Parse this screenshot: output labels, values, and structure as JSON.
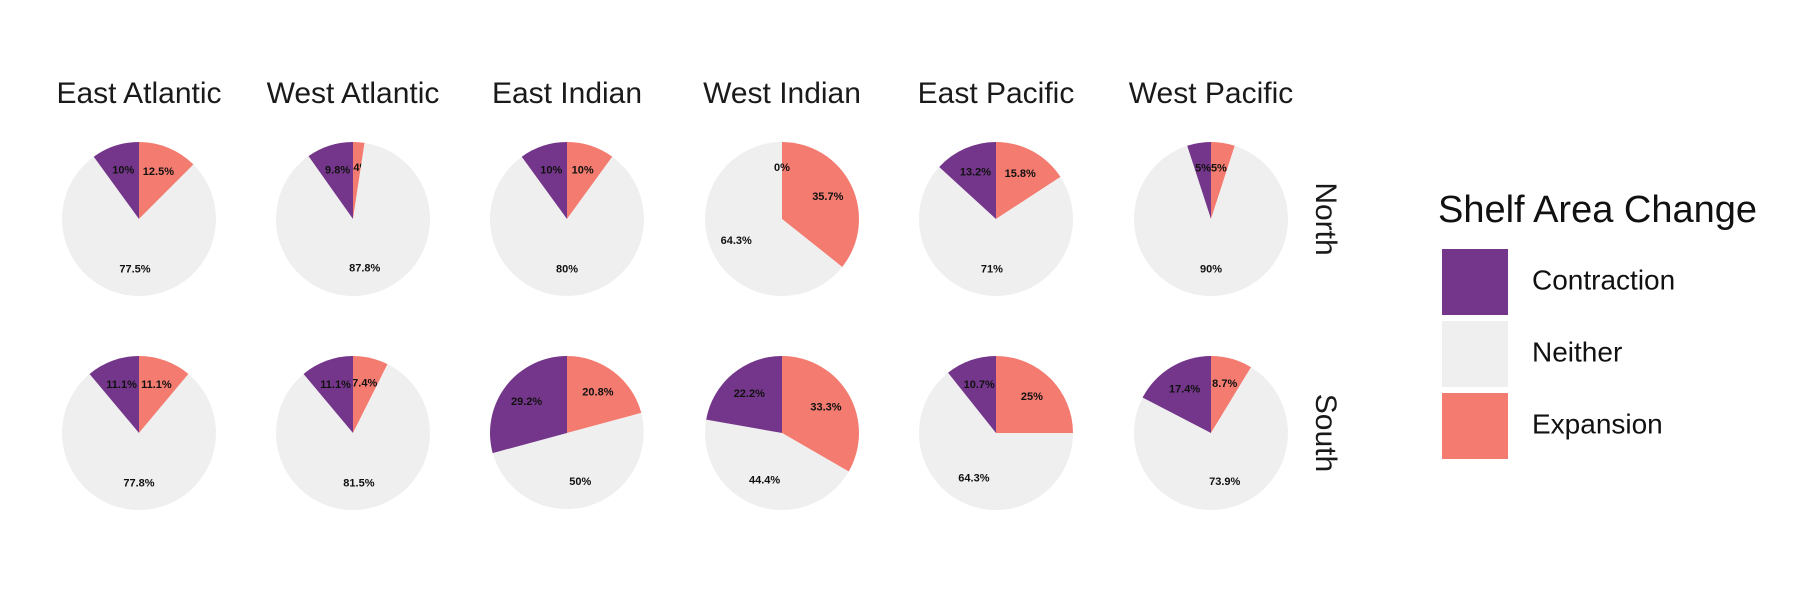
{
  "chart_data": {
    "type": "pie",
    "columns": [
      "East Atlantic",
      "West Atlantic",
      "East Indian",
      "West Indian",
      "East Pacific",
      "West Pacific"
    ],
    "rows": [
      "North",
      "South"
    ],
    "legend": {
      "title": "Shelf Area Change",
      "placement": "right",
      "entries": [
        {
          "name": "Contraction",
          "color": "#74368a"
        },
        {
          "name": "Neither",
          "color": "#efefef"
        },
        {
          "name": "Expansion",
          "color": "#f47b70"
        }
      ]
    },
    "panels": [
      {
        "row": "North",
        "column": "East Atlantic",
        "slices": [
          {
            "category": "Expansion",
            "value": 12.5,
            "label": "12.5%"
          },
          {
            "category": "Neither",
            "value": 77.5,
            "label": "77.5%"
          },
          {
            "category": "Contraction",
            "value": 10,
            "label": "10%"
          }
        ]
      },
      {
        "row": "North",
        "column": "West Atlantic",
        "slices": [
          {
            "category": "Expansion",
            "value": 2.4,
            "label": "2.4%"
          },
          {
            "category": "Neither",
            "value": 87.8,
            "label": "87.8%"
          },
          {
            "category": "Contraction",
            "value": 9.8,
            "label": "9.8%"
          }
        ]
      },
      {
        "row": "North",
        "column": "East Indian",
        "slices": [
          {
            "category": "Expansion",
            "value": 10,
            "label": "10%"
          },
          {
            "category": "Neither",
            "value": 80,
            "label": "80%"
          },
          {
            "category": "Contraction",
            "value": 10,
            "label": "10%"
          }
        ]
      },
      {
        "row": "North",
        "column": "West Indian",
        "slices": [
          {
            "category": "Expansion",
            "value": 35.7,
            "label": "35.7%"
          },
          {
            "category": "Neither",
            "value": 64.3,
            "label": "64.3%"
          },
          {
            "category": "Contraction",
            "value": 0,
            "label": "0%"
          }
        ]
      },
      {
        "row": "North",
        "column": "East Pacific",
        "slices": [
          {
            "category": "Expansion",
            "value": 15.8,
            "label": "15.8%"
          },
          {
            "category": "Neither",
            "value": 71,
            "label": "71%"
          },
          {
            "category": "Contraction",
            "value": 13.2,
            "label": "13.2%"
          }
        ]
      },
      {
        "row": "North",
        "column": "West Pacific",
        "slices": [
          {
            "category": "Expansion",
            "value": 5,
            "label": "5%"
          },
          {
            "category": "Neither",
            "value": 90,
            "label": "90%"
          },
          {
            "category": "Contraction",
            "value": 5,
            "label": "5%"
          }
        ]
      },
      {
        "row": "South",
        "column": "East Atlantic",
        "slices": [
          {
            "category": "Expansion",
            "value": 11.1,
            "label": "11.1%"
          },
          {
            "category": "Neither",
            "value": 77.8,
            "label": "77.8%"
          },
          {
            "category": "Contraction",
            "value": 11.1,
            "label": "11.1%"
          }
        ]
      },
      {
        "row": "South",
        "column": "West Atlantic",
        "slices": [
          {
            "category": "Expansion",
            "value": 7.4,
            "label": "7.4%"
          },
          {
            "category": "Neither",
            "value": 81.5,
            "label": "81.5%"
          },
          {
            "category": "Contraction",
            "value": 11.1,
            "label": "11.1%"
          }
        ]
      },
      {
        "row": "South",
        "column": "East Indian",
        "slices": [
          {
            "category": "Expansion",
            "value": 20.8,
            "label": "20.8%"
          },
          {
            "category": "Neither",
            "value": 50,
            "label": "50%"
          },
          {
            "category": "Contraction",
            "value": 29.2,
            "label": "29.2%"
          }
        ]
      },
      {
        "row": "South",
        "column": "West Indian",
        "slices": [
          {
            "category": "Expansion",
            "value": 33.3,
            "label": "33.3%"
          },
          {
            "category": "Neither",
            "value": 44.4,
            "label": "44.4%"
          },
          {
            "category": "Contraction",
            "value": 22.2,
            "label": "22.2%"
          }
        ]
      },
      {
        "row": "South",
        "column": "East Pacific",
        "slices": [
          {
            "category": "Expansion",
            "value": 25,
            "label": "25%"
          },
          {
            "category": "Neither",
            "value": 64.3,
            "label": "64.3%"
          },
          {
            "category": "Contraction",
            "value": 10.7,
            "label": "10.7%"
          }
        ]
      },
      {
        "row": "South",
        "column": "West Pacific",
        "slices": [
          {
            "category": "Expansion",
            "value": 8.7,
            "label": "8.7%"
          },
          {
            "category": "Neither",
            "value": 73.9,
            "label": "73.9%"
          },
          {
            "category": "Contraction",
            "value": 17.4,
            "label": "17.4%"
          }
        ]
      }
    ]
  }
}
